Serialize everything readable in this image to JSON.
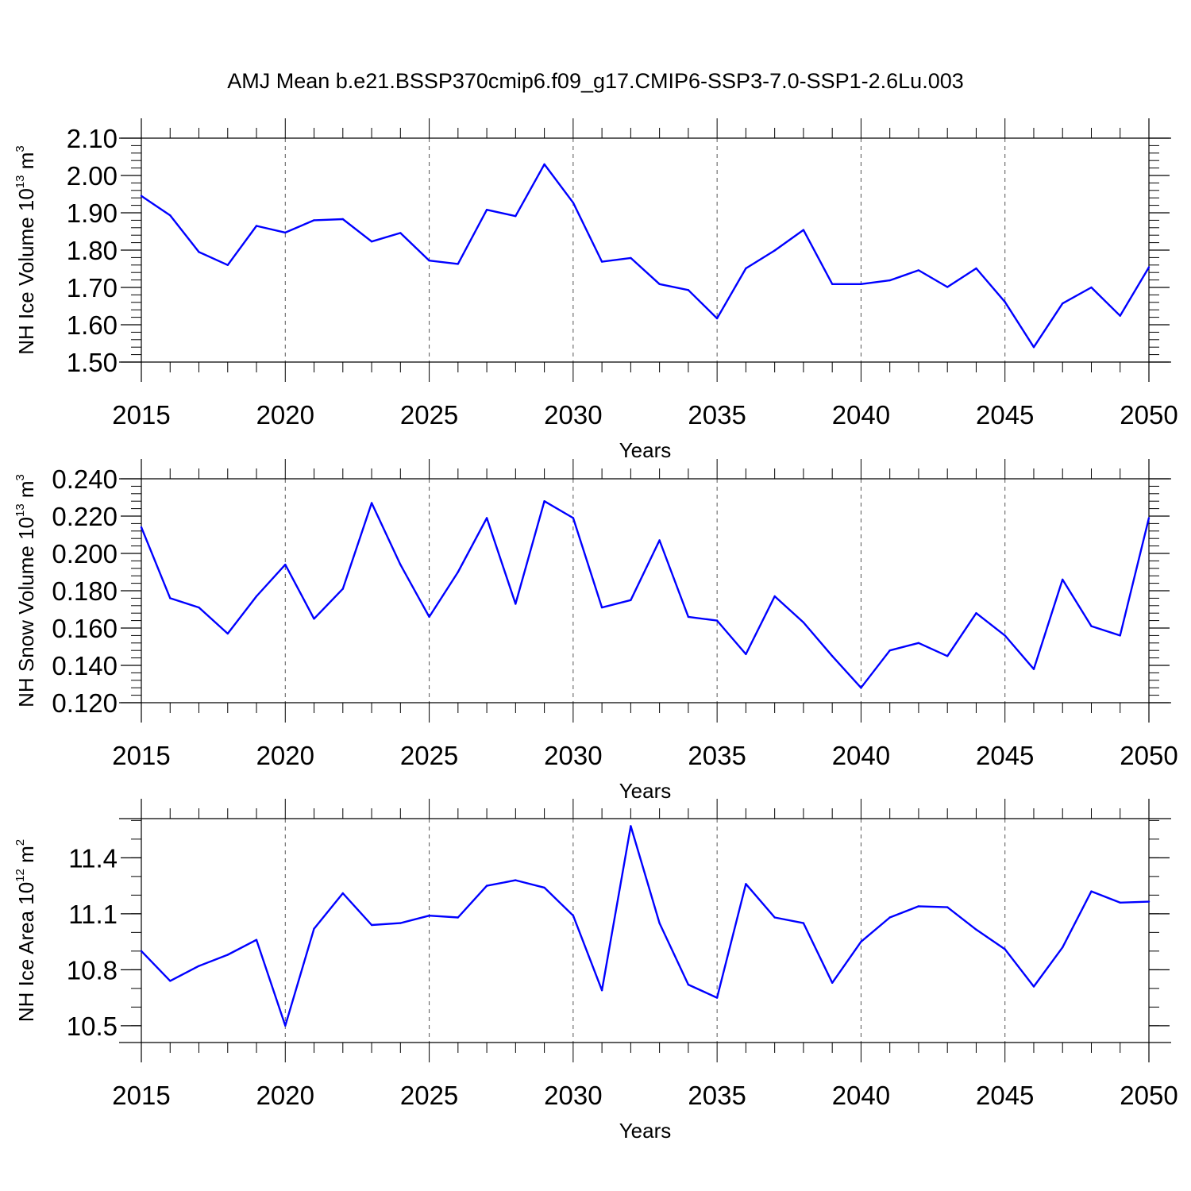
{
  "title": "AMJ Mean b.e21.BSSP370cmip6.f09_g17.CMIP6-SSP3-7.0-SSP1-2.6Lu.003",
  "chart_data": [
    {
      "type": "line",
      "title": "",
      "xlabel": "Years",
      "ylabel": {
        "text": "NH Ice Volume 10",
        "exp": "13",
        "unit": " m",
        "unit_exp": "3"
      },
      "xlim": [
        2015,
        2050
      ],
      "ylim": [
        1.5,
        2.1
      ],
      "x_ticks": [
        2015,
        2020,
        2025,
        2030,
        2035,
        2040,
        2045,
        2050
      ],
      "x_tick_labels": [
        "2015",
        "2020",
        "2025",
        "2030",
        "2035",
        "2040",
        "2045",
        "2050"
      ],
      "y_ticks": [
        1.5,
        1.6,
        1.7,
        1.8,
        1.9,
        2.0,
        2.1
      ],
      "y_tick_labels": [
        "1.50",
        "1.60",
        "1.70",
        "1.80",
        "1.90",
        "2.00",
        "2.10"
      ],
      "y_minor_step": 0.02,
      "x_gridlines": [
        2020,
        2025,
        2030,
        2035,
        2040,
        2045
      ],
      "line_color": "#0000ff",
      "x": [
        2015,
        2016,
        2017,
        2018,
        2019,
        2020,
        2021,
        2022,
        2023,
        2024,
        2025,
        2026,
        2027,
        2028,
        2029,
        2030,
        2031,
        2032,
        2033,
        2034,
        2035,
        2036,
        2037,
        2038,
        2039,
        2040,
        2041,
        2042,
        2043,
        2044,
        2045,
        2046,
        2047,
        2048,
        2049,
        2050
      ],
      "values": [
        1.945,
        1.893,
        1.795,
        1.76,
        1.865,
        1.847,
        1.88,
        1.883,
        1.823,
        1.846,
        1.772,
        1.763,
        1.908,
        1.891,
        2.03,
        1.927,
        1.769,
        1.779,
        1.709,
        1.693,
        1.617,
        1.751,
        1.799,
        1.854,
        1.709,
        1.709,
        1.719,
        1.746,
        1.701,
        1.751,
        1.661,
        1.54,
        1.657,
        1.7,
        1.624,
        1.754
      ]
    },
    {
      "type": "line",
      "title": "",
      "xlabel": "Years",
      "ylabel": {
        "text": "NH Snow Volume 10",
        "exp": "13",
        "unit": " m",
        "unit_exp": "3"
      },
      "xlim": [
        2015,
        2050
      ],
      "ylim": [
        0.12,
        0.24
      ],
      "x_ticks": [
        2015,
        2020,
        2025,
        2030,
        2035,
        2040,
        2045,
        2050
      ],
      "x_tick_labels": [
        "2015",
        "2020",
        "2025",
        "2030",
        "2035",
        "2040",
        "2045",
        "2050"
      ],
      "y_ticks": [
        0.12,
        0.14,
        0.16,
        0.18,
        0.2,
        0.22,
        0.24
      ],
      "y_tick_labels": [
        "0.120",
        "0.140",
        "0.160",
        "0.180",
        "0.200",
        "0.220",
        "0.240"
      ],
      "y_minor_step": 0.004,
      "x_gridlines": [
        2020,
        2025,
        2030,
        2035,
        2040,
        2045
      ],
      "line_color": "#0000ff",
      "x": [
        2015,
        2016,
        2017,
        2018,
        2019,
        2020,
        2021,
        2022,
        2023,
        2024,
        2025,
        2026,
        2027,
        2028,
        2029,
        2030,
        2031,
        2032,
        2033,
        2034,
        2035,
        2036,
        2037,
        2038,
        2039,
        2040,
        2041,
        2042,
        2043,
        2044,
        2045,
        2046,
        2047,
        2048,
        2049,
        2050
      ],
      "values": [
        0.214,
        0.176,
        0.171,
        0.157,
        0.177,
        0.194,
        0.165,
        0.181,
        0.227,
        0.194,
        0.166,
        0.19,
        0.219,
        0.173,
        0.228,
        0.219,
        0.171,
        0.175,
        0.207,
        0.166,
        0.164,
        0.146,
        0.177,
        0.163,
        0.145,
        0.128,
        0.148,
        0.152,
        0.145,
        0.168,
        0.156,
        0.138,
        0.186,
        0.161,
        0.156,
        0.219
      ]
    },
    {
      "type": "line",
      "title": "",
      "xlabel": "Years",
      "ylabel": {
        "text": "NH Ice Area 10",
        "exp": "12",
        "unit": " m",
        "unit_exp": "2"
      },
      "xlim": [
        2015,
        2050
      ],
      "ylim": [
        10.41,
        11.61
      ],
      "x_ticks": [
        2015,
        2020,
        2025,
        2030,
        2035,
        2040,
        2045,
        2050
      ],
      "x_tick_labels": [
        "2015",
        "2020",
        "2025",
        "2030",
        "2035",
        "2040",
        "2045",
        "2050"
      ],
      "y_ticks": [
        10.5,
        10.8,
        11.1,
        11.4
      ],
      "y_tick_labels": [
        "10.5",
        "10.8",
        "11.1",
        "11.4"
      ],
      "y_minor_step": 0.1,
      "x_gridlines": [
        2020,
        2025,
        2030,
        2035,
        2040,
        2045
      ],
      "line_color": "#0000ff",
      "x": [
        2015,
        2016,
        2017,
        2018,
        2019,
        2020,
        2021,
        2022,
        2023,
        2024,
        2025,
        2026,
        2027,
        2028,
        2029,
        2030,
        2031,
        2032,
        2033,
        2034,
        2035,
        2036,
        2037,
        2038,
        2039,
        2040,
        2041,
        2042,
        2043,
        2044,
        2045,
        2046,
        2047,
        2048,
        2049,
        2050
      ],
      "values": [
        10.9,
        10.74,
        10.82,
        10.88,
        10.96,
        10.5,
        11.02,
        11.21,
        11.04,
        11.05,
        11.09,
        11.08,
        11.25,
        11.28,
        11.24,
        11.09,
        10.69,
        11.57,
        11.05,
        10.72,
        10.65,
        11.26,
        11.08,
        11.05,
        10.73,
        10.95,
        11.08,
        11.14,
        11.135,
        11.015,
        10.91,
        10.71,
        10.92,
        11.22,
        11.16,
        11.165
      ]
    }
  ]
}
